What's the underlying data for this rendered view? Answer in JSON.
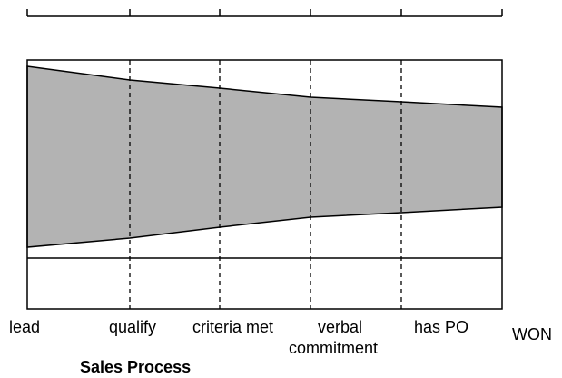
{
  "diagram": {
    "title": "Sales Process",
    "stages": [
      "lead",
      "qualify",
      "criteria met",
      "verbal",
      "has PO"
    ],
    "stage_sublabel": "commitment",
    "end_label": "WON",
    "funnel_color": "#b3b3b3"
  }
}
